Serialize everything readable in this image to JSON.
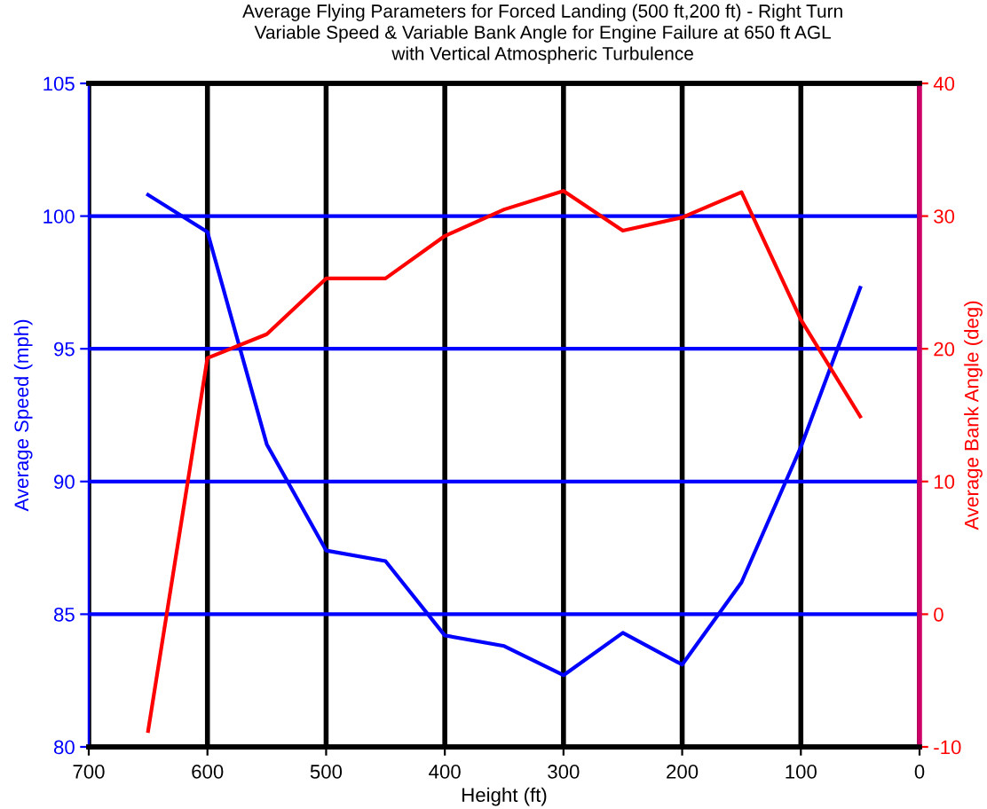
{
  "chart_data": {
    "type": "line",
    "title": "Average Flying Parameters for Forced Landing (500 ft,200 ft) - Right Turn\nVariable Speed & Variable Bank Angle for Engine Failure at 650 ft AGL\nwith Vertical Atmospheric Turbulence",
    "xlabel": "Height (ft)",
    "ylabel": "Average Speed (mph)",
    "y2label": "Average Bank Angle (deg)",
    "x": [
      650,
      600,
      550,
      500,
      450,
      400,
      350,
      300,
      250,
      200,
      150,
      100,
      50
    ],
    "series": [
      {
        "color": "#0000ff",
        "values": [
          100.8,
          99.4,
          91.4,
          87.4,
          87.0,
          84.2,
          83.8,
          82.7,
          84.3,
          83.1,
          86.2,
          91.3,
          97.3
        ]
      },
      {
        "color": "#ff0000",
        "axis": "y2",
        "values": [
          -8.8,
          19.3,
          21.1,
          25.3,
          25.3,
          28.5,
          30.5,
          31.9,
          28.9,
          29.9,
          31.8,
          22.2,
          14.9
        ]
      }
    ],
    "xlim": [
      700,
      0
    ],
    "xticks": [
      700,
      600,
      500,
      400,
      300,
      200,
      100,
      0
    ],
    "ylim": [
      80,
      105
    ],
    "yticks": [
      80,
      85,
      90,
      95,
      100,
      105
    ],
    "y2lim": [
      -10,
      40
    ],
    "y2ticks": [
      -10,
      0,
      10,
      20,
      30,
      40
    ],
    "grid": true,
    "marker": "none",
    "line_style": "solid"
  }
}
